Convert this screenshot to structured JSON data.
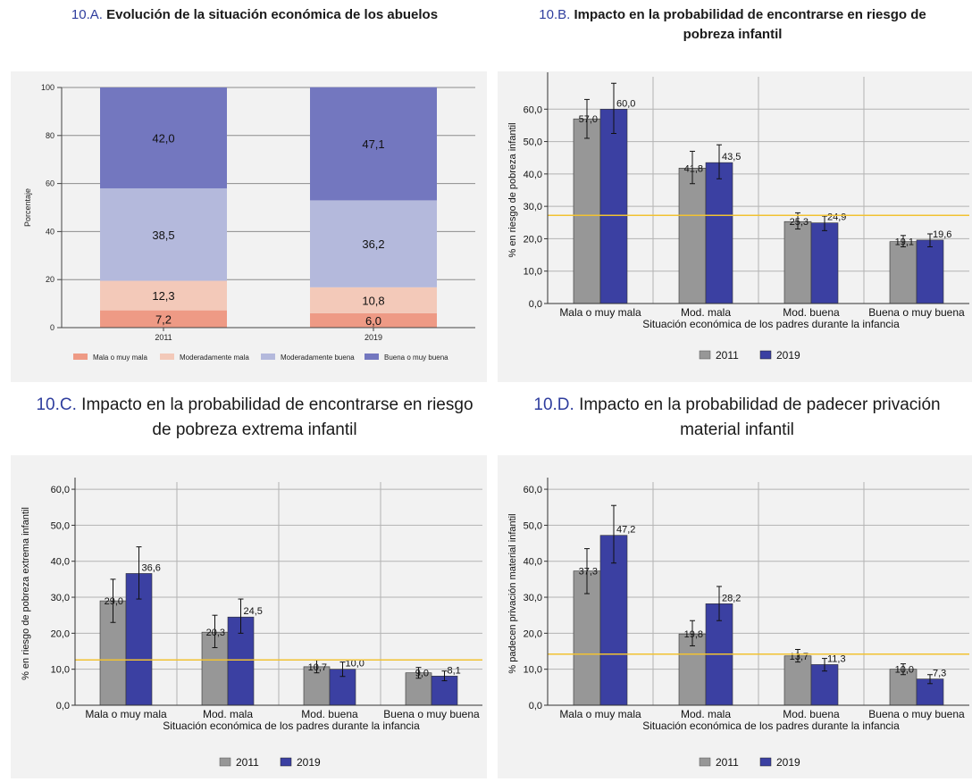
{
  "panels": [
    {
      "code": "10.A.",
      "title": "Evolución de la situación económica de los abuelos"
    },
    {
      "code": "10.B.",
      "title": "Impacto en la probabilidad de encontrarse en riesgo de pobreza infantil"
    },
    {
      "code": "10.C.",
      "title": "Impacto en la probabilidad de encontrarse en riesgo de pobreza extrema infantil"
    },
    {
      "code": "10.D.",
      "title": "Impacto en la probabilidad de padecer privación material infantil"
    }
  ],
  "colors": {
    "title_code": "#2f3e9e",
    "stack": [
      "#ee9a85",
      "#f3c9b9",
      "#b4b9dc",
      "#7377bf"
    ],
    "bar_2011": "#979797",
    "bar_2019": "#3b40a2",
    "reference_line": "#f1c232"
  },
  "chart_data": [
    {
      "type": "bar",
      "stacked": true,
      "categories": [
        "2011",
        "2019"
      ],
      "ylabel": "Porcentaje",
      "ylim": [
        0,
        100
      ],
      "yticks": [
        "0",
        "20",
        "40",
        "60",
        "80",
        "100"
      ],
      "legend_position": "bottom",
      "grid": true,
      "series": [
        {
          "name": "Mala o muy mala",
          "values": [
            7.2,
            6.0
          ],
          "labels": [
            "7,2",
            "6,0"
          ]
        },
        {
          "name": "Moderadamente mala",
          "values": [
            12.3,
            10.8
          ],
          "labels": [
            "12,3",
            "10,8"
          ]
        },
        {
          "name": "Moderadamente buena",
          "values": [
            38.5,
            36.2
          ],
          "labels": [
            "38,5",
            "36,2"
          ]
        },
        {
          "name": "Buena o muy buena",
          "values": [
            42.0,
            47.1
          ],
          "labels": [
            "42,0",
            "47,1"
          ]
        }
      ]
    },
    {
      "type": "bar",
      "categories": [
        "Mala o muy mala",
        "Mod. mala",
        "Mod. buena",
        "Buena o muy buena"
      ],
      "xlabel": "Situación económica de los padres durante la infancia",
      "ylabel": "% en riesgo de pobreza infantil",
      "ylim": [
        0,
        70
      ],
      "yticks": [
        "0,0",
        "10,0",
        "20,0",
        "30,0",
        "40,0",
        "50,0",
        "60,0"
      ],
      "reference_line": 27.2,
      "legend_position": "bottom",
      "grid": true,
      "series": [
        {
          "name": "2011",
          "values": [
            57.0,
            41.8,
            25.3,
            19.1
          ],
          "labels": [
            "57,0",
            "41,8",
            "25,3",
            "19,1"
          ],
          "ci_low": [
            51.0,
            37.0,
            23.0,
            17.5
          ],
          "ci_high": [
            63.0,
            47.0,
            28.0,
            21.0
          ]
        },
        {
          "name": "2019",
          "values": [
            60.0,
            43.5,
            24.9,
            19.6
          ],
          "labels": [
            "60,0",
            "43,5",
            "24,9",
            "19,6"
          ],
          "ci_low": [
            52.5,
            38.5,
            22.5,
            17.5
          ],
          "ci_high": [
            68.0,
            49.0,
            27.0,
            21.5
          ]
        }
      ]
    },
    {
      "type": "bar",
      "categories": [
        "Mala o muy mala",
        "Mod. mala",
        "Mod. buena",
        "Buena o muy buena"
      ],
      "xlabel": "Situación económica de los padres durante la infancia",
      "ylabel": "% en riesgo de pobreza extrema infantil",
      "ylim": [
        0,
        62
      ],
      "yticks": [
        "0,0",
        "10,0",
        "20,0",
        "30,0",
        "40,0",
        "50,0",
        "60,0"
      ],
      "reference_line": 12.6,
      "legend_position": "bottom",
      "grid": true,
      "series": [
        {
          "name": "2011",
          "values": [
            29.0,
            20.3,
            10.7,
            9.0
          ],
          "labels": [
            "29,0",
            "20,3",
            "10,7",
            "9,0"
          ],
          "ci_low": [
            23.0,
            16.0,
            9.0,
            7.5
          ],
          "ci_high": [
            35.0,
            25.0,
            12.5,
            10.5
          ]
        },
        {
          "name": "2019",
          "values": [
            36.6,
            24.5,
            10.0,
            8.1
          ],
          "labels": [
            "36,6",
            "24,5",
            "10,0",
            "8,1"
          ],
          "ci_low": [
            29.5,
            20.0,
            8.0,
            6.8
          ],
          "ci_high": [
            44.0,
            29.5,
            12.0,
            9.5
          ]
        }
      ]
    },
    {
      "type": "bar",
      "categories": [
        "Mala o muy mala",
        "Mod. mala",
        "Mod. buena",
        "Buena o muy buena"
      ],
      "xlabel": "Situación económica de los padres durante la infancia",
      "ylabel": "% padecen privación material infantil",
      "ylim": [
        0,
        62
      ],
      "yticks": [
        "0,0",
        "10,0",
        "20,0",
        "30,0",
        "40,0",
        "50,0",
        "60,0"
      ],
      "reference_line": 14.2,
      "legend_position": "bottom",
      "grid": true,
      "series": [
        {
          "name": "2011",
          "values": [
            37.3,
            19.8,
            13.7,
            10.0
          ],
          "labels": [
            "37,3",
            "19,8",
            "13,7",
            "10,0"
          ],
          "ci_low": [
            31.0,
            16.5,
            12.0,
            8.5
          ],
          "ci_high": [
            43.5,
            23.5,
            15.5,
            11.5
          ]
        },
        {
          "name": "2019",
          "values": [
            47.2,
            28.2,
            11.3,
            7.3
          ],
          "labels": [
            "47,2",
            "28,2",
            "11,3",
            "7,3"
          ],
          "ci_low": [
            39.5,
            23.5,
            9.5,
            6.0
          ],
          "ci_high": [
            55.5,
            33.0,
            13.0,
            8.5
          ]
        }
      ]
    }
  ]
}
